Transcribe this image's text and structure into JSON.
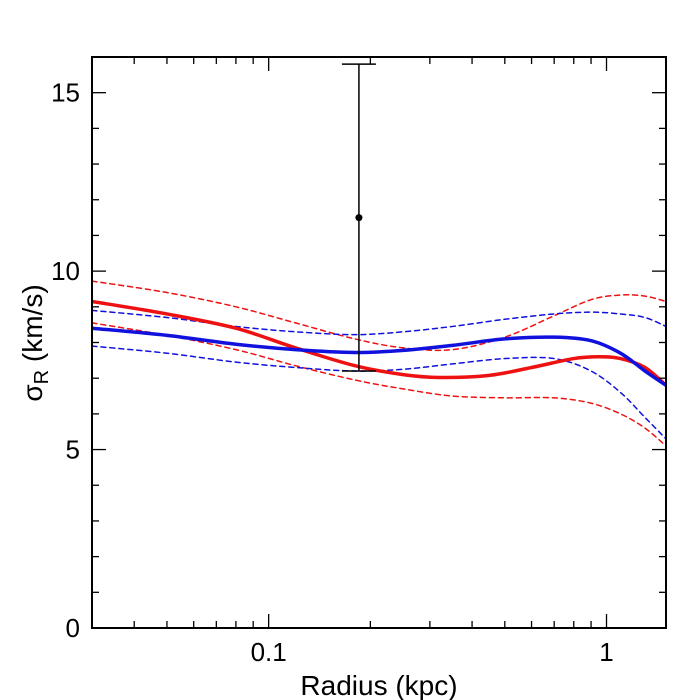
{
  "chart_data": {
    "type": "line",
    "xlabel": "Radius (kpc)",
    "ylabel_main": "σ",
    "ylabel_sub": "R",
    "ylabel_unit": " (km/s)",
    "xscale": "log",
    "xlim": [
      0.03,
      1.5
    ],
    "ylim": [
      0,
      16
    ],
    "xticks_major": [
      {
        "value": 0.1,
        "label": "0.1"
      },
      {
        "value": 1,
        "label": "1"
      }
    ],
    "xticks_minor": [
      0.03,
      0.04,
      0.05,
      0.06,
      0.07,
      0.08,
      0.09,
      0.2,
      0.3,
      0.4,
      0.5,
      0.6,
      0.7,
      0.8,
      0.9
    ],
    "yticks_major": [
      {
        "value": 0,
        "label": "0"
      },
      {
        "value": 5,
        "label": "5"
      },
      {
        "value": 10,
        "label": "10"
      },
      {
        "value": 15,
        "label": "15"
      }
    ],
    "yticks_minor": [
      1,
      2,
      3,
      4,
      6,
      7,
      8,
      9,
      11,
      12,
      13,
      14,
      16
    ],
    "grid": false,
    "colors": {
      "red": "#ee1111",
      "blue": "#1111dd",
      "black": "#000000"
    },
    "series": [
      {
        "id": "red-fit",
        "color": "#ee1111",
        "style": "solid",
        "x": [
          0.03,
          0.05,
          0.08,
          0.12,
          0.18,
          0.25,
          0.32,
          0.45,
          0.6,
          0.8,
          0.95,
          1.1,
          1.3,
          1.5
        ],
        "y": [
          9.15,
          8.8,
          8.4,
          7.85,
          7.35,
          7.1,
          7.02,
          7.08,
          7.3,
          7.55,
          7.6,
          7.55,
          7.3,
          6.8
        ]
      },
      {
        "id": "red-upper",
        "color": "#ee1111",
        "style": "dashed",
        "x": [
          0.03,
          0.05,
          0.08,
          0.12,
          0.18,
          0.25,
          0.35,
          0.5,
          0.7,
          0.9,
          1.1,
          1.3,
          1.5
        ],
        "y": [
          9.72,
          9.4,
          9.0,
          8.55,
          8.1,
          7.85,
          7.8,
          8.15,
          8.75,
          9.2,
          9.33,
          9.3,
          9.15
        ]
      },
      {
        "id": "red-lower",
        "color": "#ee1111",
        "style": "dashed",
        "x": [
          0.03,
          0.05,
          0.08,
          0.12,
          0.18,
          0.25,
          0.35,
          0.5,
          0.7,
          0.9,
          1.1,
          1.3,
          1.5
        ],
        "y": [
          8.55,
          8.2,
          7.8,
          7.35,
          6.95,
          6.7,
          6.5,
          6.45,
          6.45,
          6.3,
          6.0,
          5.6,
          5.1
        ]
      },
      {
        "id": "blue-fit",
        "color": "#1111dd",
        "style": "solid",
        "x": [
          0.03,
          0.05,
          0.08,
          0.12,
          0.18,
          0.25,
          0.35,
          0.5,
          0.7,
          0.9,
          1.1,
          1.3,
          1.5
        ],
        "y": [
          8.4,
          8.2,
          7.95,
          7.8,
          7.72,
          7.78,
          7.92,
          8.1,
          8.15,
          8.05,
          7.7,
          7.2,
          6.8
        ]
      },
      {
        "id": "blue-upper",
        "color": "#1111dd",
        "style": "dashed",
        "x": [
          0.03,
          0.05,
          0.08,
          0.12,
          0.18,
          0.25,
          0.35,
          0.5,
          0.7,
          0.9,
          1.1,
          1.3,
          1.5
        ],
        "y": [
          8.9,
          8.7,
          8.45,
          8.3,
          8.22,
          8.3,
          8.45,
          8.65,
          8.8,
          8.85,
          8.8,
          8.7,
          8.45
        ]
      },
      {
        "id": "blue-lower",
        "color": "#1111dd",
        "style": "dashed",
        "x": [
          0.03,
          0.05,
          0.08,
          0.12,
          0.18,
          0.25,
          0.35,
          0.5,
          0.7,
          0.9,
          1.1,
          1.3,
          1.5
        ],
        "y": [
          7.9,
          7.7,
          7.45,
          7.3,
          7.2,
          7.25,
          7.4,
          7.55,
          7.55,
          7.2,
          6.6,
          5.9,
          5.3
        ]
      }
    ],
    "points": [
      {
        "id": "data-point",
        "x": 0.185,
        "y": 11.5,
        "yerr_low": 7.2,
        "yerr_high": 15.8,
        "color": "#000000"
      }
    ]
  }
}
